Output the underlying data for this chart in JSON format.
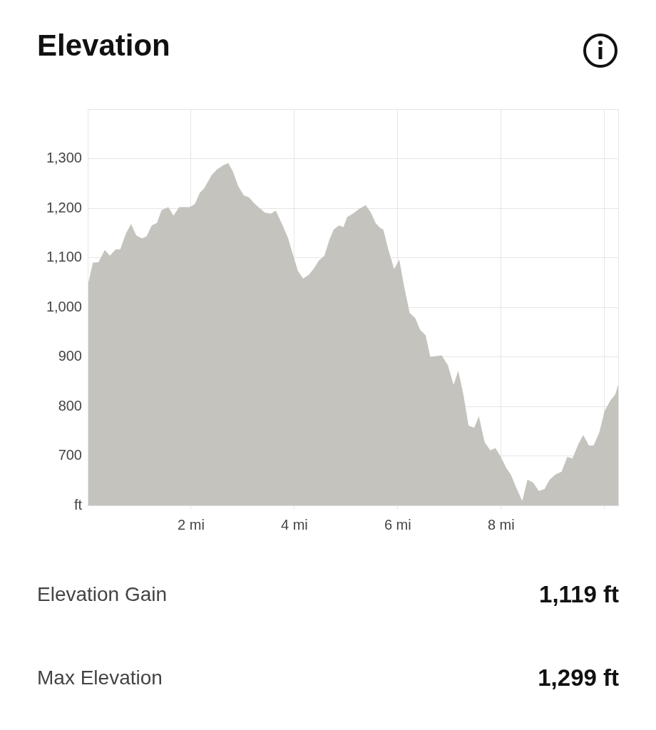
{
  "chart_data": {
    "type": "area",
    "title": "Elevation",
    "x": [
      0,
      0.1,
      0.21,
      0.33,
      0.43,
      0.54,
      0.63,
      0.74,
      0.84,
      0.94,
      1.05,
      1.14,
      1.24,
      1.34,
      1.43,
      1.56,
      1.66,
      1.77,
      1.97,
      2.07,
      2.17,
      2.26,
      2.4,
      2.5,
      2.63,
      2.72,
      2.81,
      2.91,
      3.02,
      3.12,
      3.23,
      3.34,
      3.43,
      3.54,
      3.64,
      3.77,
      3.88,
      3.97,
      4.07,
      4.17,
      4.28,
      4.37,
      4.47,
      4.58,
      4.68,
      4.76,
      4.86,
      4.95,
      5.02,
      5.12,
      5.26,
      5.38,
      5.48,
      5.57,
      5.66,
      5.72,
      5.82,
      5.93,
      6.03,
      6.12,
      6.23,
      6.34,
      6.43,
      6.54,
      6.63,
      6.85,
      6.97,
      7.08,
      7.17,
      7.27,
      7.37,
      7.48,
      7.57,
      7.68,
      7.79,
      7.89,
      7.99,
      8.1,
      8.19,
      8.3,
      8.41,
      8.51,
      8.62,
      8.73,
      8.84,
      8.94,
      9.06,
      9.17,
      9.28,
      9.38,
      9.5,
      9.59,
      9.7,
      9.79,
      9.9,
      10.0,
      10.11,
      10.21,
      10.28
    ],
    "values": [
      1044,
      1090,
      1091,
      1116,
      1104,
      1117,
      1117,
      1149,
      1168,
      1145,
      1139,
      1143,
      1165,
      1170,
      1196,
      1202,
      1185,
      1202,
      1202,
      1208,
      1231,
      1241,
      1267,
      1278,
      1287,
      1291,
      1274,
      1245,
      1226,
      1222,
      1209,
      1199,
      1191,
      1189,
      1195,
      1166,
      1139,
      1107,
      1073,
      1058,
      1066,
      1077,
      1094,
      1104,
      1137,
      1157,
      1165,
      1162,
      1182,
      1188,
      1199,
      1206,
      1191,
      1170,
      1160,
      1157,
      1116,
      1077,
      1096,
      1044,
      989,
      978,
      955,
      943,
      900,
      903,
      883,
      843,
      872,
      824,
      761,
      757,
      780,
      728,
      711,
      716,
      699,
      676,
      662,
      634,
      609,
      652,
      646,
      629,
      633,
      652,
      663,
      668,
      698,
      695,
      725,
      742,
      721,
      721,
      747,
      790,
      811,
      824,
      849
    ],
    "color": "#c4c3be",
    "xlim": [
      0,
      10.28
    ],
    "xticks": [
      {
        "value": 2,
        "label": "2 mi"
      },
      {
        "value": 4,
        "label": "4 mi"
      },
      {
        "value": 6,
        "label": "6 mi"
      },
      {
        "value": 8,
        "label": "8 mi"
      },
      {
        "value": 10,
        "label": null
      }
    ],
    "ylim": [
      600,
      1400
    ],
    "yticks": [
      {
        "value": 600,
        "label": "ft"
      },
      700,
      800,
      900,
      {
        "value": 1000,
        "label": "1,000"
      },
      {
        "value": 1100,
        "label": "1,100"
      },
      {
        "value": 1200,
        "label": "1,200"
      },
      {
        "value": 1300,
        "label": "1,300"
      },
      {
        "value": 1400,
        "label": null
      }
    ],
    "grid": true,
    "annotations": [
      "Elevation Gain",
      "1,119 ft",
      "Max Elevation",
      "1,299 ft"
    ]
  }
}
